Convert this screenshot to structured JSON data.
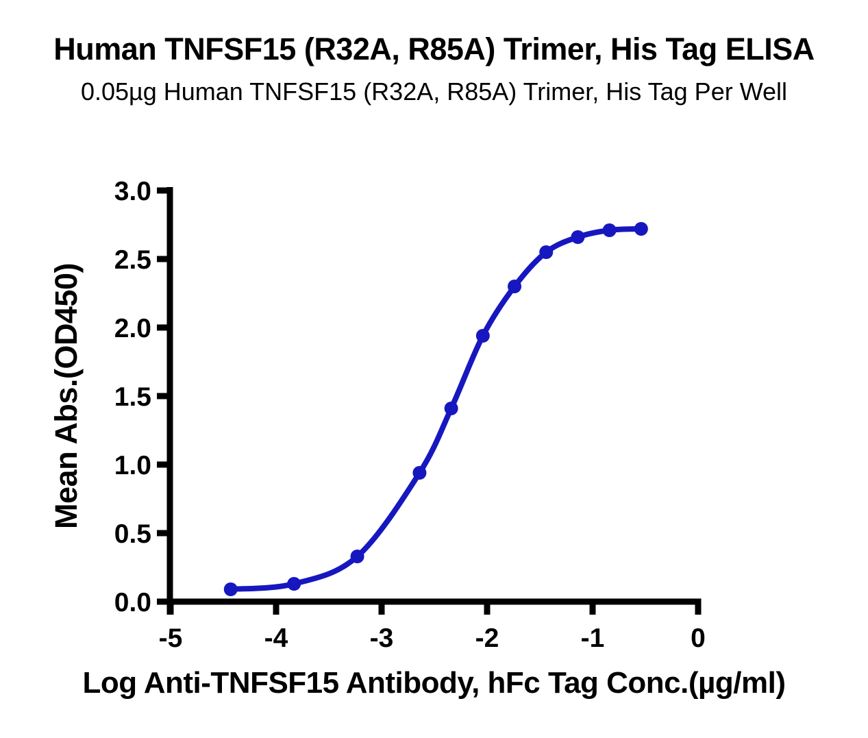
{
  "header": {
    "title": "Human TNFSF15 (R32A, R85A) Trimer, His Tag ELISA",
    "subtitle": "0.05µg Human TNFSF15 (R32A, R85A) Trimer, His Tag Per Well"
  },
  "chart_data": {
    "type": "line",
    "title": "Human TNFSF15 (R32A, R85A) Trimer, His Tag ELISA",
    "subtitle": "0.05µg Human TNFSF15 (R32A, R85A) Trimer, His Tag Per Well",
    "xlabel": "Log Anti-TNFSF15 Antibody, hFc Tag Conc.(µg/ml)",
    "ylabel": "Mean Abs.(OD450)",
    "xlim": [
      -5,
      0
    ],
    "ylim": [
      0,
      3
    ],
    "xticks": [
      -5,
      -4,
      -3,
      -2,
      -1,
      0
    ],
    "xtick_labels": [
      "-5",
      "-4",
      "-3",
      "-2",
      "-1",
      "0"
    ],
    "yticks": [
      0,
      0.5,
      1,
      1.5,
      2,
      2.5,
      3
    ],
    "ytick_labels": [
      "0.0",
      "0.5",
      "1.0",
      "1.5",
      "2.0",
      "2.5",
      "3.0"
    ],
    "grid": false,
    "legend_position": "none",
    "series": [
      {
        "marker": "circle",
        "color": "#1717C0",
        "x": [
          -4.43,
          -3.83,
          -3.23,
          -2.64,
          -2.34,
          -2.04,
          -1.74,
          -1.44,
          -1.14,
          -0.84,
          -0.54
        ],
        "y": [
          0.09,
          0.13,
          0.33,
          0.94,
          1.41,
          1.94,
          2.3,
          2.55,
          2.66,
          2.71,
          2.72
        ]
      }
    ]
  },
  "colors": {
    "curve": "#1717C0",
    "axis": "#000000",
    "text": "#000000",
    "background": "#ffffff"
  }
}
